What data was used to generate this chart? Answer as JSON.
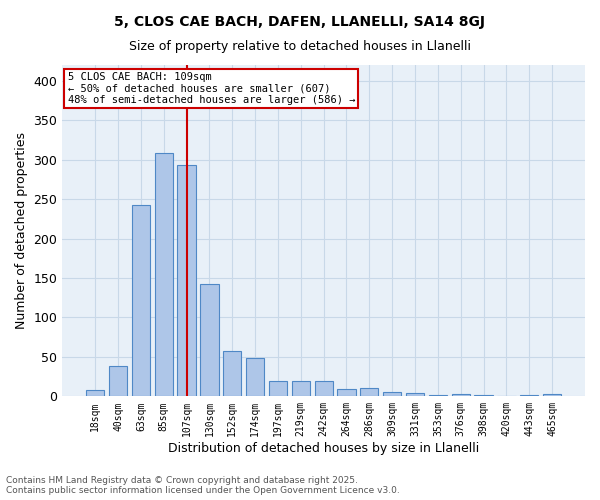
{
  "title1": "5, CLOS CAE BACH, DAFEN, LLANELLI, SA14 8GJ",
  "title2": "Size of property relative to detached houses in Llanelli",
  "xlabel": "Distribution of detached houses by size in Llanelli",
  "ylabel": "Number of detached properties",
  "bar_color": "#aec6e8",
  "bar_edge_color": "#4f88c6",
  "grid_color": "#c8d8e8",
  "background_color": "#e8f0f8",
  "vline_color": "#cc0000",
  "vline_position": 4.5,
  "annotation_text": "5 CLOS CAE BACH: 109sqm\n← 50% of detached houses are smaller (607)\n48% of semi-detached houses are larger (586) →",
  "annotation_box_color": "#ffffff",
  "annotation_box_edge": "#cc0000",
  "categories": [
    "18sqm",
    "40sqm",
    "63sqm",
    "85sqm",
    "107sqm",
    "130sqm",
    "152sqm",
    "174sqm",
    "197sqm",
    "219sqm",
    "242sqm",
    "264sqm",
    "286sqm",
    "309sqm",
    "331sqm",
    "353sqm",
    "376sqm",
    "398sqm",
    "420sqm",
    "443sqm",
    "465sqm"
  ],
  "values": [
    8,
    39,
    243,
    308,
    293,
    143,
    57,
    48,
    19,
    19,
    20,
    9,
    11,
    6,
    4,
    2,
    3,
    2,
    1,
    2,
    3
  ],
  "footer_text": "Contains HM Land Registry data © Crown copyright and database right 2025.\nContains public sector information licensed under the Open Government Licence v3.0.",
  "ylim": [
    0,
    420
  ],
  "yticks": [
    0,
    50,
    100,
    150,
    200,
    250,
    300,
    350,
    400
  ]
}
